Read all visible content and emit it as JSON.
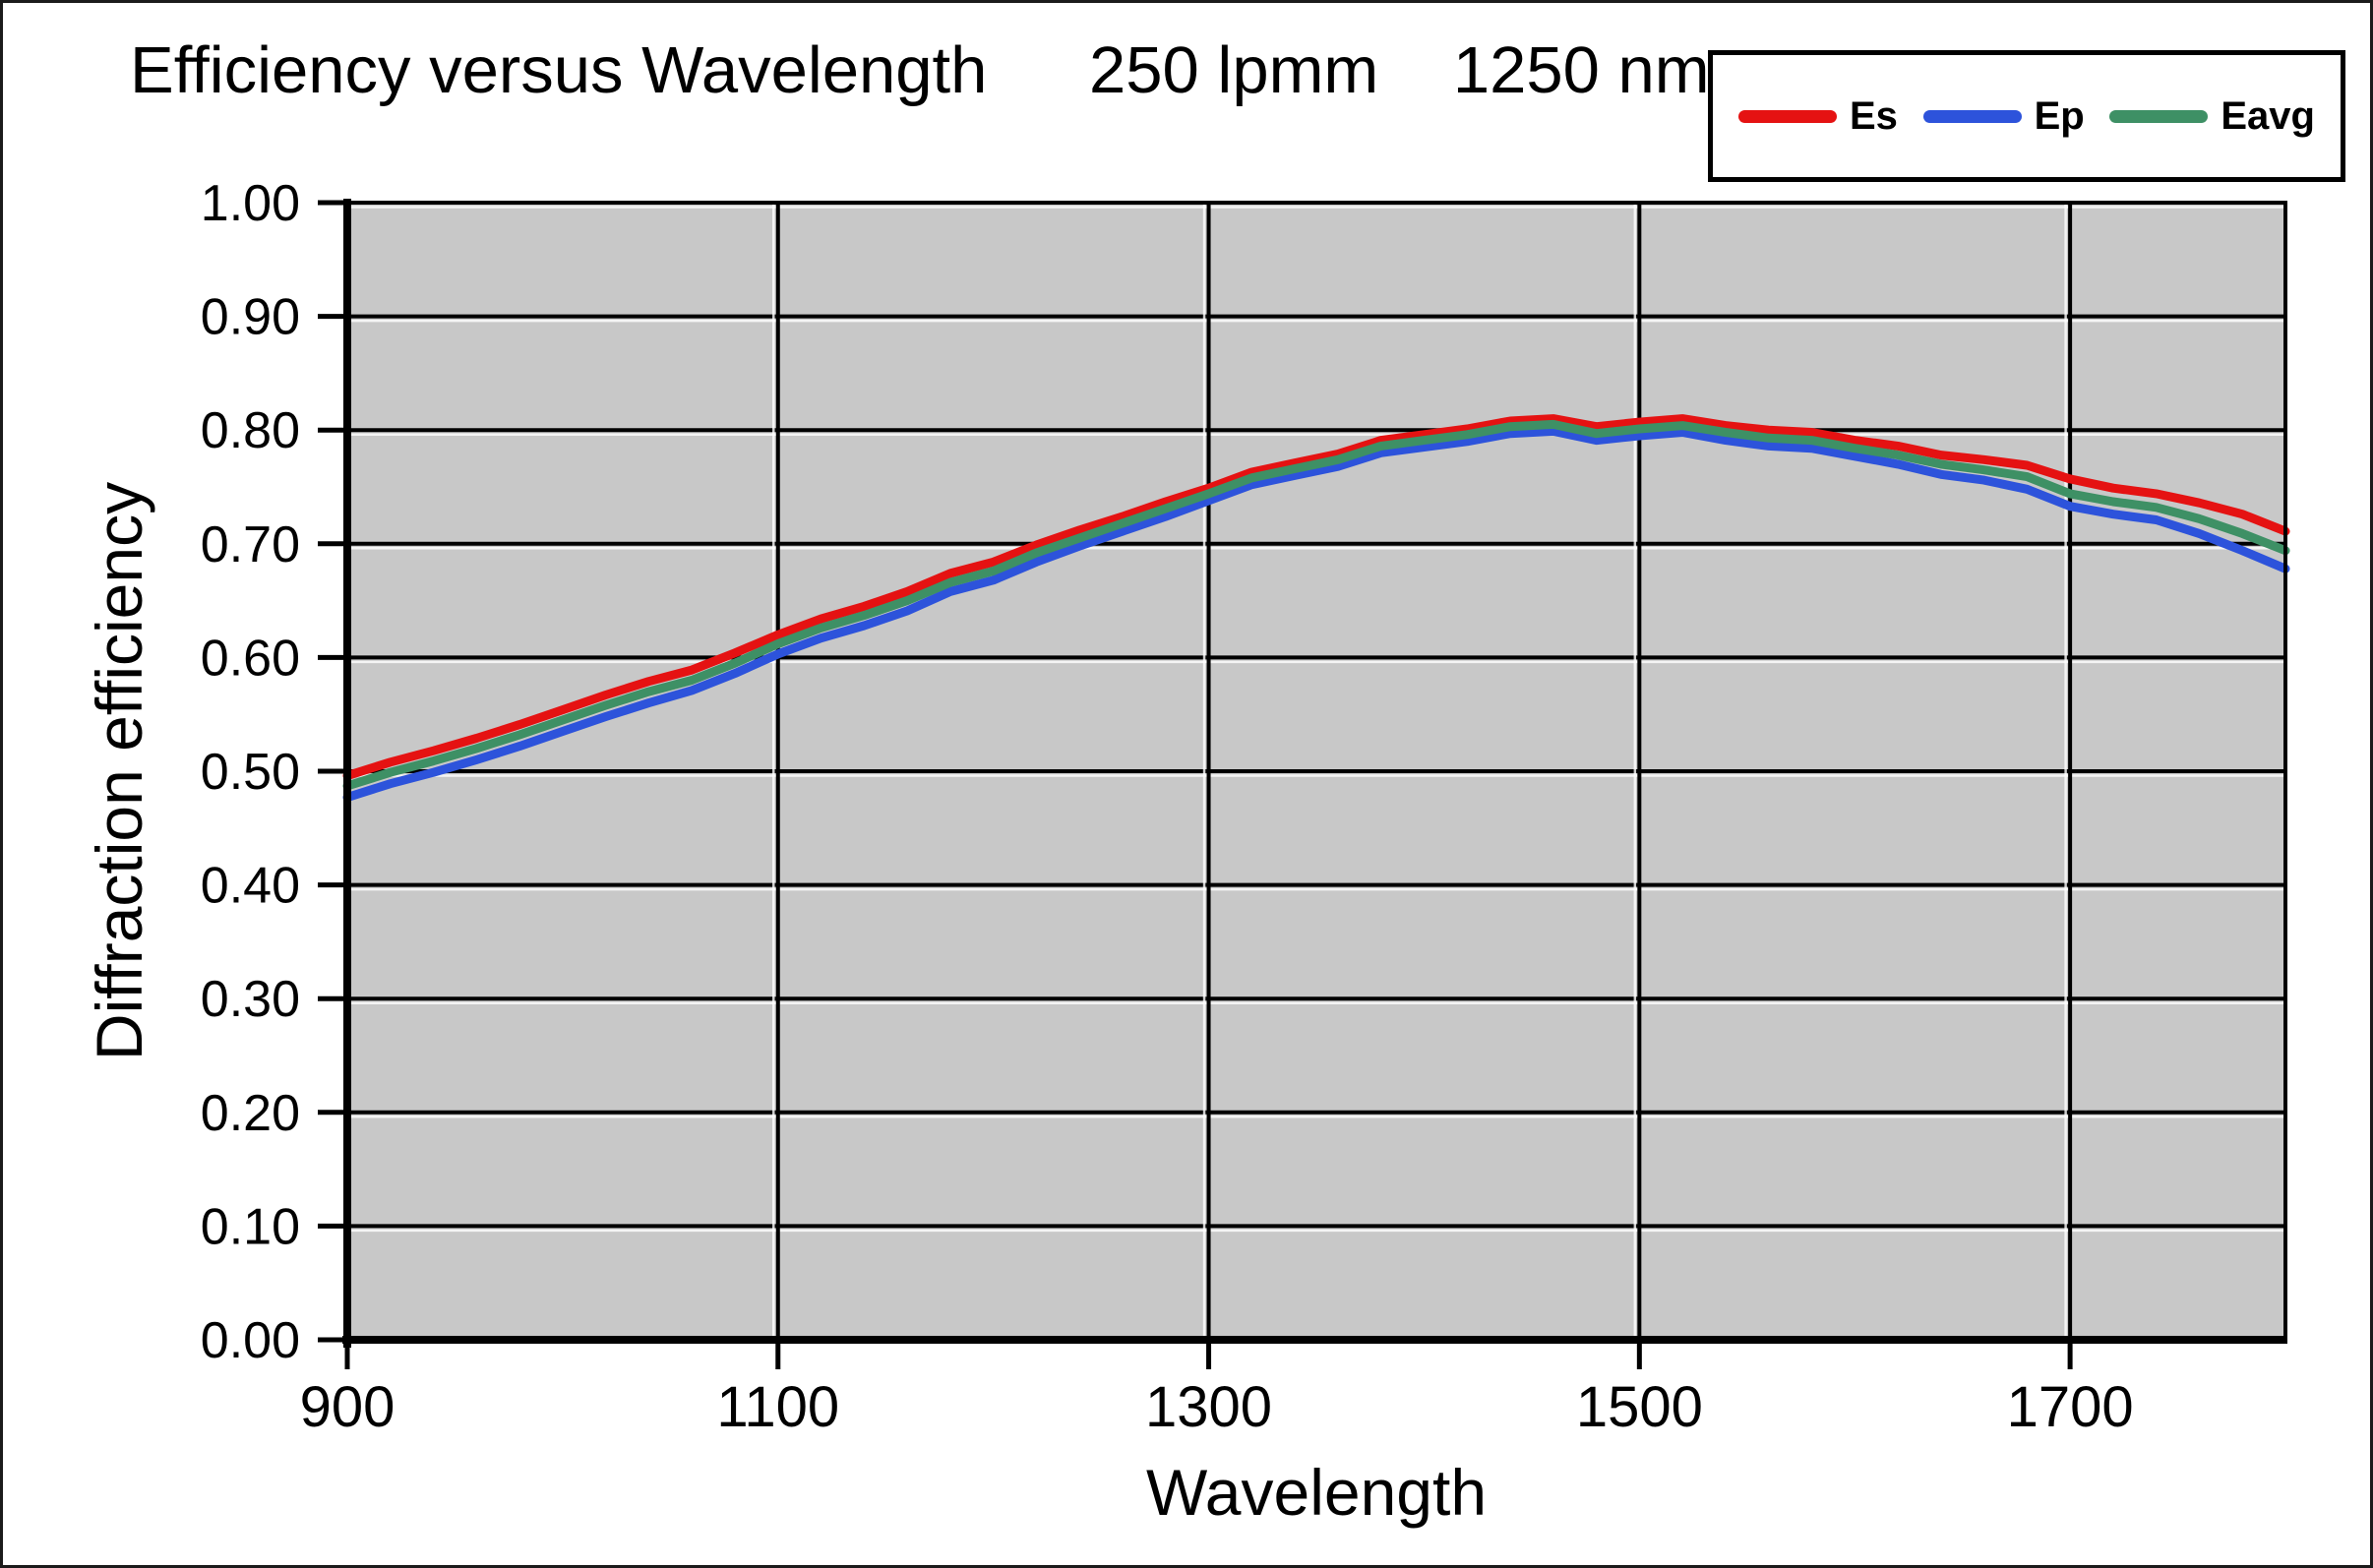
{
  "title": {
    "main": "Efficiency versus Wavelength",
    "lpmm": "250 lpmm",
    "nm": "1250 nm"
  },
  "legend": {
    "items": [
      {
        "label": "Es",
        "color": "#e51212"
      },
      {
        "label": "Ep",
        "color": "#2d53db"
      },
      {
        "label": "Eavg",
        "color": "#3e9065"
      }
    ]
  },
  "chart_data": {
    "type": "line",
    "title": "Efficiency versus Wavelength  250 lpmm  1250 nm",
    "xlabel": "Wavelength",
    "ylabel": "Diffraction efficiency",
    "xlim": [
      900,
      1800
    ],
    "ylim": [
      0,
      1
    ],
    "grid": true,
    "legend_position": "top-right",
    "plot_bg": "#c8c8c8",
    "grid_color": "#000000",
    "y_tick_labels": [
      "0.00",
      "0.10",
      "0.20",
      "0.30",
      "0.40",
      "0.50",
      "0.60",
      "0.70",
      "0.80",
      "0.90",
      "1.00"
    ],
    "x_tick_labels": [
      900,
      1100,
      1300,
      1500,
      1700
    ],
    "x_gridlines": [
      1100,
      1300,
      1500,
      1700
    ],
    "x": [
      900,
      920,
      940,
      960,
      980,
      1000,
      1020,
      1040,
      1060,
      1080,
      1100,
      1120,
      1140,
      1160,
      1180,
      1200,
      1220,
      1240,
      1260,
      1280,
      1300,
      1320,
      1340,
      1360,
      1380,
      1400,
      1420,
      1440,
      1460,
      1480,
      1500,
      1520,
      1540,
      1560,
      1580,
      1600,
      1620,
      1640,
      1660,
      1680,
      1700,
      1720,
      1740,
      1760,
      1780,
      1800
    ],
    "series": [
      {
        "name": "Es",
        "color": "#e51212",
        "values": [
          0.496,
          0.508,
          0.518,
          0.529,
          0.541,
          0.554,
          0.567,
          0.579,
          0.589,
          0.604,
          0.62,
          0.634,
          0.645,
          0.658,
          0.674,
          0.684,
          0.699,
          0.712,
          0.724,
          0.737,
          0.749,
          0.763,
          0.771,
          0.779,
          0.791,
          0.796,
          0.801,
          0.808,
          0.81,
          0.803,
          0.807,
          0.81,
          0.804,
          0.8,
          0.798,
          0.791,
          0.786,
          0.778,
          0.774,
          0.769,
          0.757,
          0.749,
          0.744,
          0.736,
          0.726,
          0.711
        ]
      },
      {
        "name": "Ep",
        "color": "#2d53db",
        "values": [
          0.477,
          0.489,
          0.499,
          0.51,
          0.522,
          0.535,
          0.548,
          0.56,
          0.571,
          0.586,
          0.603,
          0.617,
          0.628,
          0.641,
          0.658,
          0.668,
          0.684,
          0.698,
          0.711,
          0.724,
          0.738,
          0.752,
          0.76,
          0.768,
          0.78,
          0.785,
          0.79,
          0.797,
          0.799,
          0.791,
          0.795,
          0.798,
          0.791,
          0.786,
          0.784,
          0.777,
          0.77,
          0.761,
          0.756,
          0.748,
          0.733,
          0.726,
          0.721,
          0.709,
          0.694,
          0.678
        ]
      },
      {
        "name": "Eavg",
        "color": "#3e9065",
        "values": [
          0.487,
          0.499,
          0.509,
          0.52,
          0.532,
          0.545,
          0.558,
          0.57,
          0.58,
          0.595,
          0.612,
          0.626,
          0.637,
          0.65,
          0.666,
          0.676,
          0.692,
          0.705,
          0.718,
          0.731,
          0.744,
          0.758,
          0.766,
          0.774,
          0.786,
          0.791,
          0.796,
          0.803,
          0.805,
          0.797,
          0.801,
          0.804,
          0.798,
          0.793,
          0.791,
          0.784,
          0.778,
          0.77,
          0.765,
          0.759,
          0.744,
          0.737,
          0.732,
          0.722,
          0.709,
          0.694
        ]
      }
    ]
  }
}
